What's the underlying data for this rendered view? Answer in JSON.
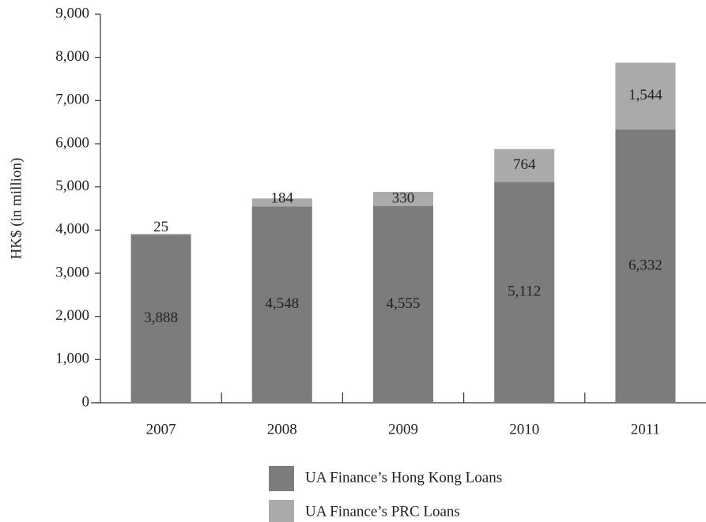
{
  "chart_data": {
    "type": "stacked_bar",
    "y_label": "HK$ (in million)",
    "categories": [
      "2007",
      "2008",
      "2009",
      "2010",
      "2011"
    ],
    "series": [
      {
        "name": "UA Finance’s Hong Kong Loans",
        "color": "#7b7c7e",
        "values": [
          3888,
          4548,
          4555,
          5112,
          6332
        ],
        "value_labels": [
          "3,888",
          "4,548",
          "4,555",
          "5,112",
          "6,332"
        ]
      },
      {
        "name": "UA Finance’s PRC Loans",
        "color": "#a9aaac",
        "values": [
          25,
          184,
          330,
          764,
          1544
        ],
        "value_labels": [
          "25",
          "184",
          "330",
          "764",
          "1,544"
        ]
      }
    ],
    "ylim": [
      0,
      9000
    ],
    "yticks": [
      0,
      {
        "value": 1000,
        "label": "1,000"
      },
      {
        "value": 2000,
        "label": "2,000"
      },
      {
        "value": 3000,
        "label": "3,000"
      },
      {
        "value": 4000,
        "label": "4,000"
      },
      {
        "value": 5000,
        "label": "5,000"
      },
      {
        "value": 6000,
        "label": "6,000"
      },
      {
        "value": 7000,
        "label": "7,000"
      },
      {
        "value": 8000,
        "label": "8,000"
      },
      {
        "value": 9000,
        "label": "9,000"
      }
    ],
    "legend": "bottom"
  }
}
